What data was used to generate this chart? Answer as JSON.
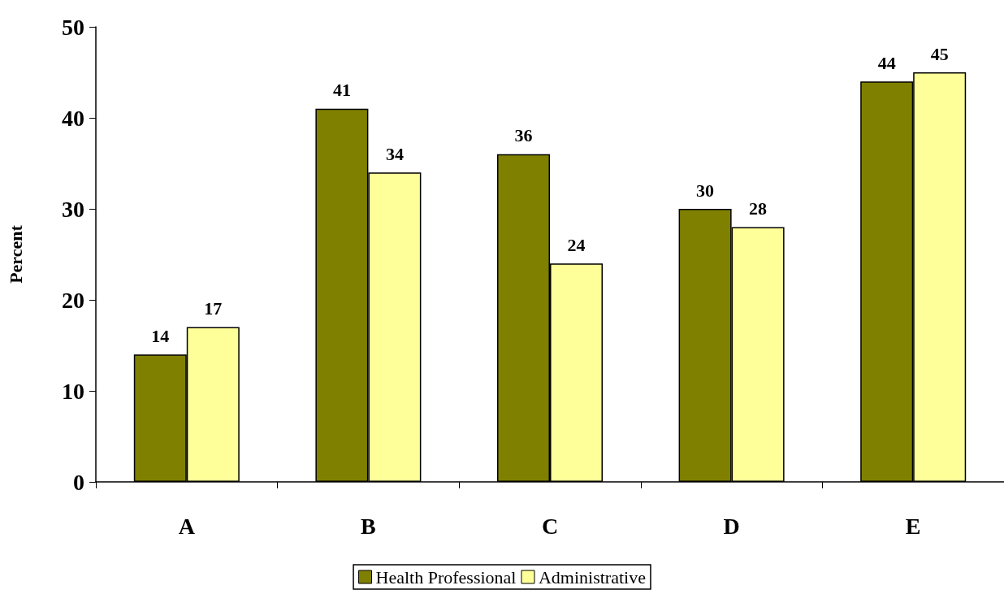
{
  "chart_data": {
    "type": "bar",
    "ylabel": "Percent",
    "categories": [
      "A",
      "B",
      "C",
      "D",
      "E"
    ],
    "series": [
      {
        "name": "Health Professional",
        "color": "#808000",
        "values": [
          14,
          41,
          36,
          30,
          44
        ]
      },
      {
        "name": "Administrative",
        "color": "#ffff99",
        "values": [
          17,
          34,
          24,
          28,
          45
        ]
      }
    ],
    "ylim": [
      0,
      50
    ],
    "yticks": [
      0,
      10,
      20,
      30,
      40,
      50
    ],
    "grid": false,
    "legend": "bottom",
    "data_labels": true
  }
}
